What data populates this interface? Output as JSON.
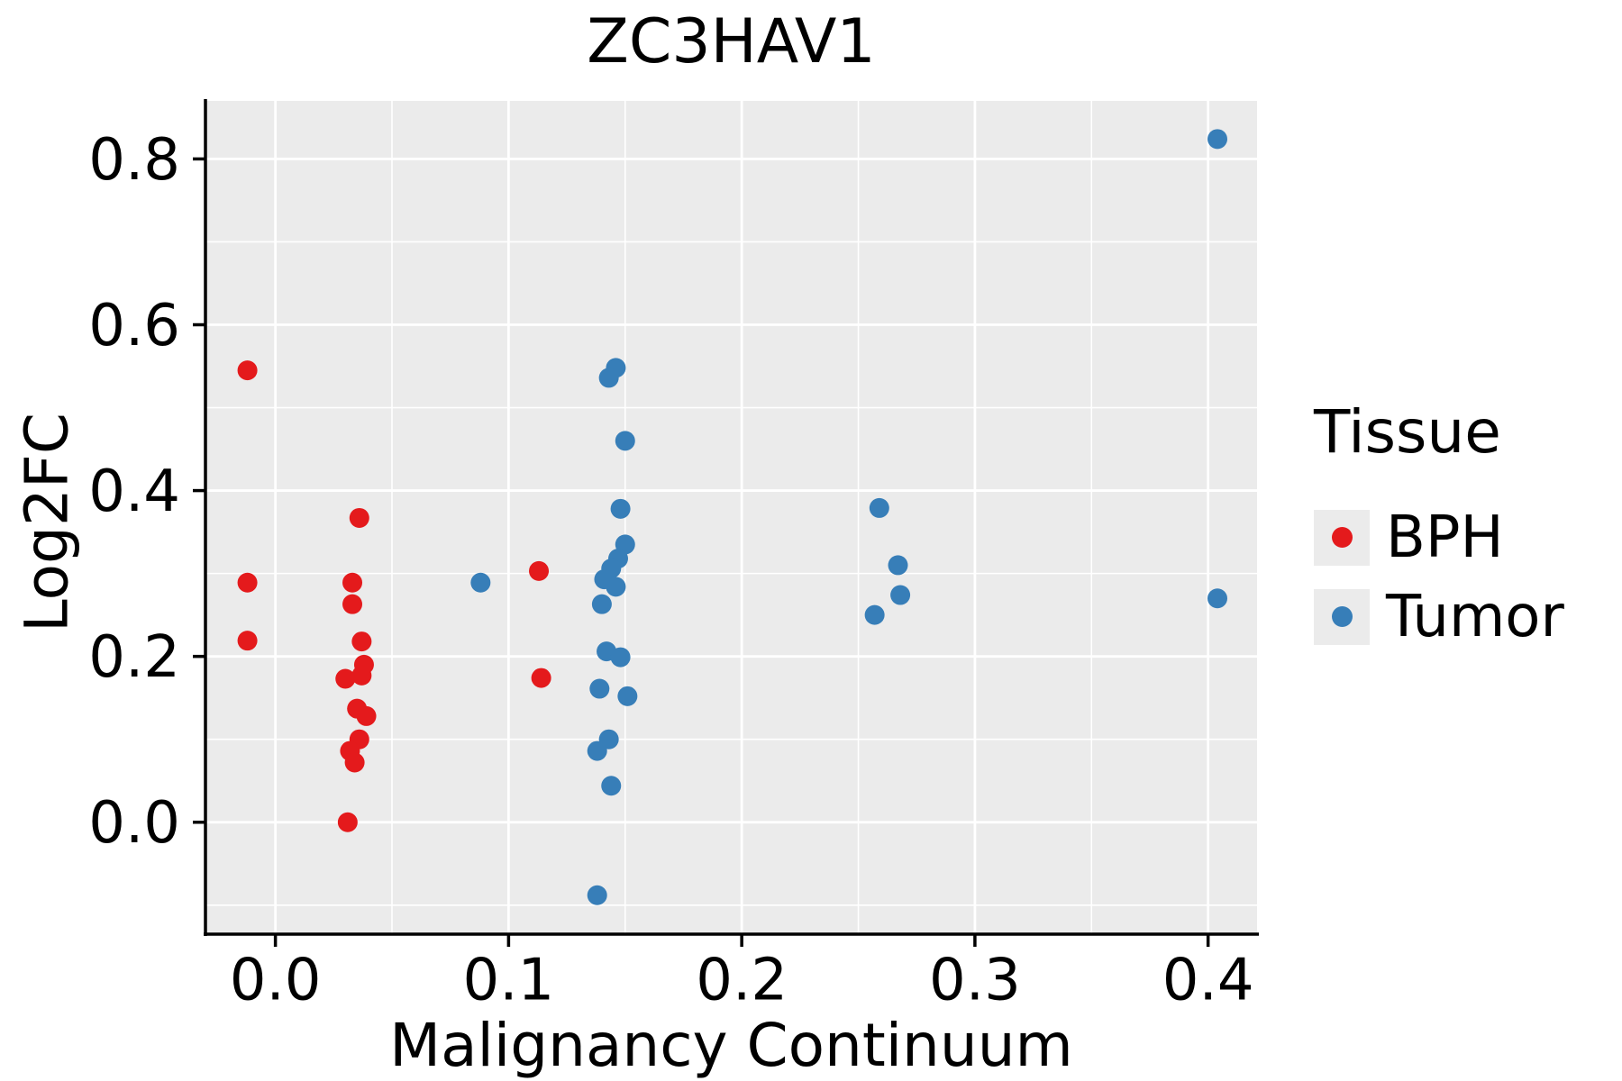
{
  "figure": {
    "background": "#ffffff",
    "panel_background": "#ebebeb",
    "grid_color": "#ffffff",
    "axis_color": "#000000"
  },
  "chart_data": {
    "type": "scatter",
    "title": "ZC3HAV1",
    "xlabel": "Malignancy Continuum",
    "ylabel": "Log2FC",
    "xlim": [
      -0.03,
      0.421
    ],
    "ylim": [
      -0.135,
      0.87
    ],
    "grid": true,
    "xticks": {
      "values": [
        0.0,
        0.1,
        0.2,
        0.3,
        0.4
      ],
      "labels": [
        "0.0",
        "0.1",
        "0.2",
        "0.3",
        "0.4"
      ]
    },
    "yticks": {
      "values": [
        0.0,
        0.2,
        0.4,
        0.6,
        0.8
      ],
      "labels": [
        "0.0",
        "0.2",
        "0.4",
        "0.6",
        "0.8"
      ]
    },
    "minor_xticks": [
      0.05,
      0.15,
      0.25,
      0.35
    ],
    "minor_yticks": [
      -0.1,
      0.1,
      0.3,
      0.5,
      0.7
    ],
    "legend": {
      "title": "Tissue",
      "position": "right",
      "entries": [
        {
          "label": "BPH",
          "color": "#e41a1c"
        },
        {
          "label": "Tumor",
          "color": "#377eb8"
        }
      ]
    },
    "series": [
      {
        "name": "BPH",
        "color": "#e41a1c",
        "points": [
          [
            -0.012,
            0.545
          ],
          [
            -0.012,
            0.289
          ],
          [
            -0.012,
            0.219
          ],
          [
            0.036,
            0.367
          ],
          [
            0.033,
            0.289
          ],
          [
            0.033,
            0.263
          ],
          [
            0.037,
            0.218
          ],
          [
            0.038,
            0.19
          ],
          [
            0.03,
            0.173
          ],
          [
            0.037,
            0.177
          ],
          [
            0.035,
            0.137
          ],
          [
            0.039,
            0.128
          ],
          [
            0.036,
            0.1
          ],
          [
            0.032,
            0.086
          ],
          [
            0.034,
            0.072
          ],
          [
            0.031,
            0.0
          ],
          [
            0.113,
            0.303
          ],
          [
            0.114,
            0.174
          ]
        ]
      },
      {
        "name": "Tumor",
        "color": "#377eb8",
        "points": [
          [
            0.088,
            0.289
          ],
          [
            0.146,
            0.548
          ],
          [
            0.143,
            0.536
          ],
          [
            0.15,
            0.46
          ],
          [
            0.148,
            0.378
          ],
          [
            0.15,
            0.335
          ],
          [
            0.147,
            0.318
          ],
          [
            0.144,
            0.306
          ],
          [
            0.141,
            0.293
          ],
          [
            0.146,
            0.284
          ],
          [
            0.14,
            0.263
          ],
          [
            0.142,
            0.206
          ],
          [
            0.148,
            0.199
          ],
          [
            0.139,
            0.161
          ],
          [
            0.151,
            0.152
          ],
          [
            0.143,
            0.1
          ],
          [
            0.138,
            0.086
          ],
          [
            0.144,
            0.044
          ],
          [
            0.138,
            -0.088
          ],
          [
            0.259,
            0.379
          ],
          [
            0.267,
            0.31
          ],
          [
            0.268,
            0.274
          ],
          [
            0.257,
            0.25
          ],
          [
            0.404,
            0.824
          ],
          [
            0.404,
            0.27
          ]
        ]
      }
    ]
  }
}
